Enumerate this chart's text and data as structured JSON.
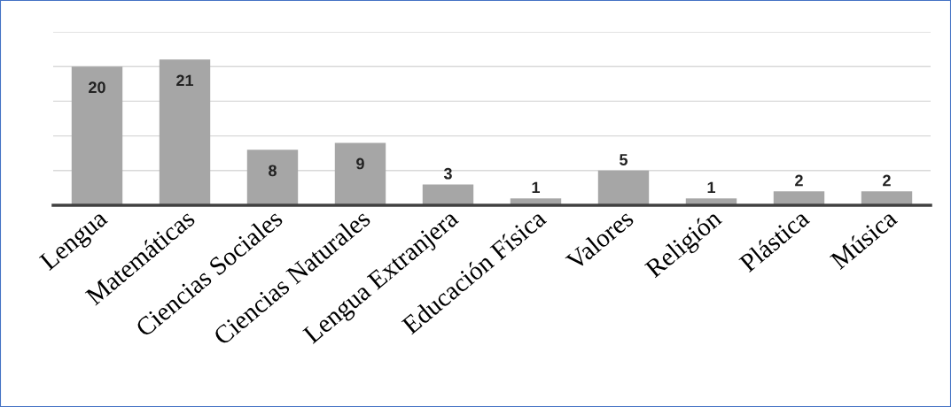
{
  "chart_data": {
    "type": "bar",
    "categories": [
      "Lengua",
      "Matemáticas",
      "Ciencias Sociales",
      "Ciencias Naturales",
      "Lengua Extranjera",
      "Educación Física",
      "Valores",
      "Religión",
      "Plástica",
      "Música"
    ],
    "values": [
      20,
      21,
      8,
      9,
      3,
      1,
      5,
      1,
      2,
      2
    ],
    "color": "#a6a6a6",
    "ylim": [
      0,
      25
    ],
    "yticks": [
      {
        "value": 0,
        "label": null
      },
      {
        "value": 5,
        "label": null
      },
      {
        "value": 10,
        "label": null
      },
      {
        "value": 15,
        "label": null
      },
      {
        "value": 20,
        "label": null
      },
      {
        "value": 25,
        "label": null
      }
    ],
    "grid": "y",
    "data_labels": true,
    "tick_labels": "x",
    "legend": false
  }
}
